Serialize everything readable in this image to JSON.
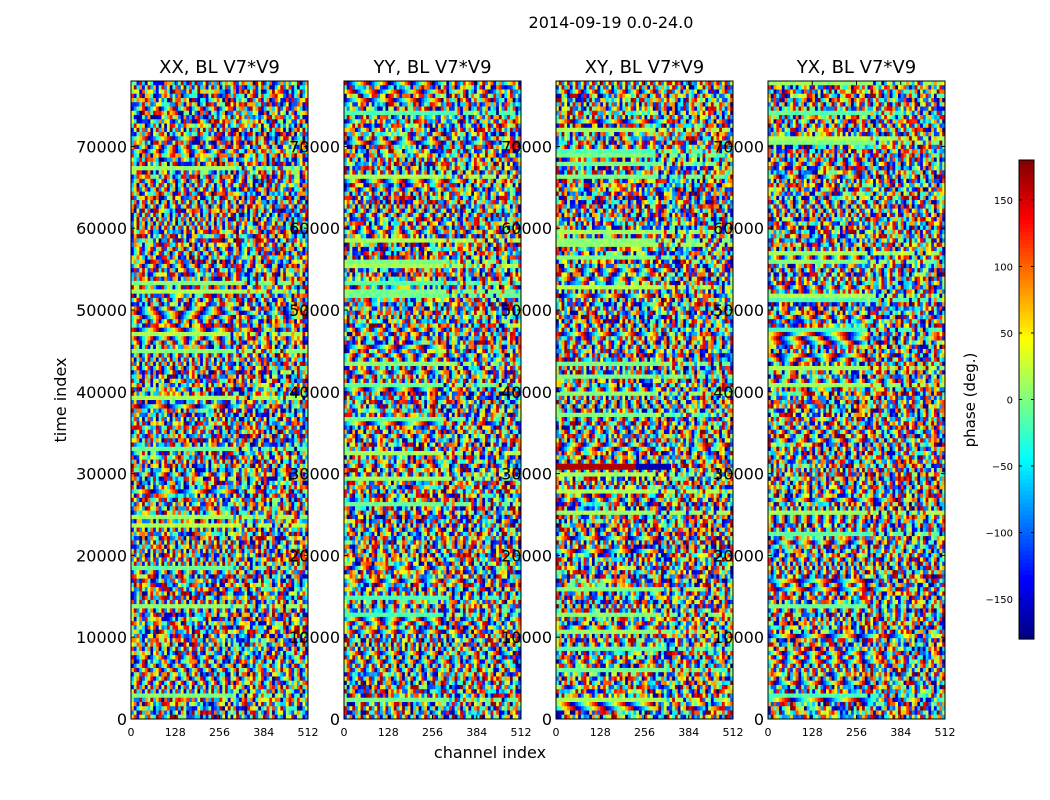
{
  "figure": {
    "suptitle": "2014-09-19 0.0-24.0",
    "xlabel": "channel index",
    "ylabel": "time index"
  },
  "chart_data": {
    "type": "heatmap",
    "title": "2014-09-19 0.0-24.0",
    "xlabel": "channel index",
    "ylabel": "time index",
    "xlim": [
      0,
      512
    ],
    "ylim": [
      0,
      78000
    ],
    "x_ticks": [
      0,
      128,
      256,
      384,
      512
    ],
    "y_ticks": [
      0,
      10000,
      20000,
      30000,
      40000,
      50000,
      60000,
      70000
    ],
    "panels": [
      {
        "name": "XX, BL V7*V9"
      },
      {
        "name": "YY, BL V7*V9"
      },
      {
        "name": "XY, BL V7*V9"
      },
      {
        "name": "YX, BL V7*V9"
      }
    ],
    "colorbar": {
      "label": "phase (deg.)",
      "range": [
        -180,
        180
      ],
      "ticks": [
        -150,
        -100,
        -50,
        0,
        50,
        100,
        150
      ],
      "tick_labels": [
        "−150",
        "−100",
        "−50",
        "0",
        "50",
        "100",
        "150"
      ],
      "colormap": "jet"
    },
    "colors": {
      "jet_low": "#000080",
      "jet_blue": "#0000ff",
      "jet_cyan": "#00ffff",
      "jet_mid": "#7fff7f",
      "jet_yellow": "#ffff00",
      "jet_red": "#ff0000",
      "jet_high": "#800000"
    }
  }
}
